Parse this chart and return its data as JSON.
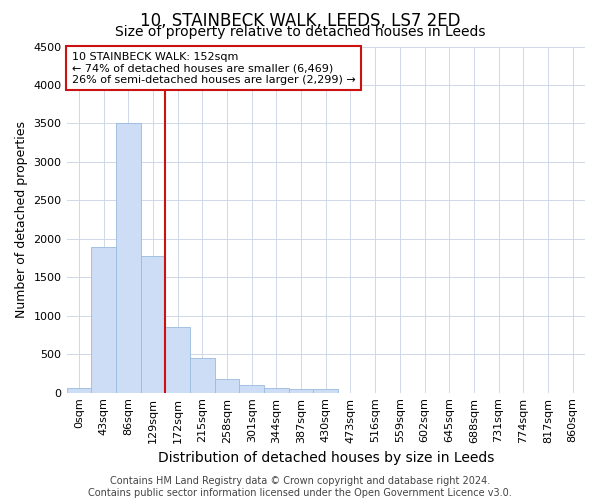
{
  "title": "10, STAINBECK WALK, LEEDS, LS7 2ED",
  "subtitle": "Size of property relative to detached houses in Leeds",
  "xlabel": "Distribution of detached houses by size in Leeds",
  "ylabel": "Number of detached properties",
  "bin_labels": [
    "0sqm",
    "43sqm",
    "86sqm",
    "129sqm",
    "172sqm",
    "215sqm",
    "258sqm",
    "301sqm",
    "344sqm",
    "387sqm",
    "430sqm",
    "473sqm",
    "516sqm",
    "559sqm",
    "602sqm",
    "645sqm",
    "688sqm",
    "731sqm",
    "774sqm",
    "817sqm",
    "860sqm"
  ],
  "bar_values": [
    60,
    1900,
    3500,
    1775,
    850,
    450,
    175,
    100,
    60,
    50,
    50,
    0,
    0,
    0,
    0,
    0,
    0,
    0,
    0,
    0,
    0
  ],
  "bar_color": "#ccddf5",
  "bar_edgecolor": "#99bbdd",
  "vline_x": 3.5,
  "vline_color": "#cc1111",
  "annotation_text": "10 STAINBECK WALK: 152sqm\n← 74% of detached houses are smaller (6,469)\n26% of semi-detached houses are larger (2,299) →",
  "annotation_box_facecolor": "#ffffff",
  "annotation_box_edgecolor": "#cc1111",
  "ylim": [
    0,
    4500
  ],
  "yticks": [
    0,
    500,
    1000,
    1500,
    2000,
    2500,
    3000,
    3500,
    4000,
    4500
  ],
  "footer_text": "Contains HM Land Registry data © Crown copyright and database right 2024.\nContains public sector information licensed under the Open Government Licence v3.0.",
  "title_fontsize": 12,
  "subtitle_fontsize": 10,
  "xlabel_fontsize": 10,
  "ylabel_fontsize": 9,
  "tick_fontsize": 8,
  "annotation_fontsize": 8,
  "footer_fontsize": 7
}
